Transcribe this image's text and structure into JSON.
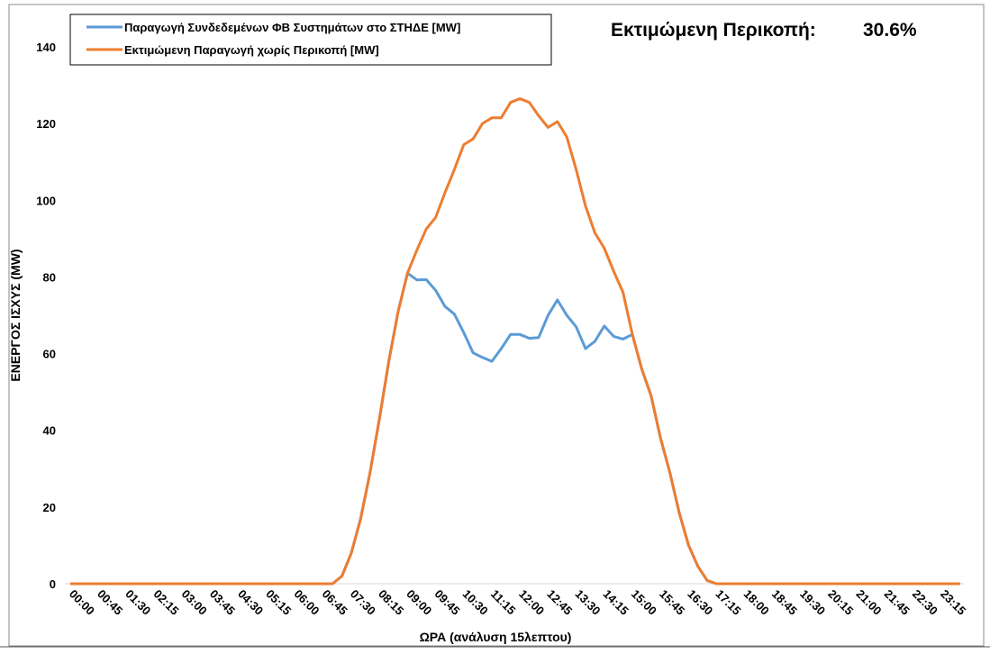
{
  "chart_data": {
    "type": "line",
    "annotation": "Εκτιμώμενη Περικοπή:",
    "annotation_value": "30.6%",
    "xlabel": "ΩΡΑ (ανάλυση 15λεπτου)",
    "ylabel": "ΕΝΕΡΓΟΣ ΙΣΧΥΣ (MW)",
    "categories": [
      "00:00",
      null,
      null,
      "00:45",
      null,
      null,
      "01:30",
      null,
      null,
      "02:15",
      null,
      null,
      "03:00",
      null,
      null,
      "03:45",
      null,
      null,
      "04:30",
      null,
      null,
      "05:15",
      null,
      null,
      "06:00",
      null,
      null,
      "06:45",
      null,
      null,
      "07:30",
      null,
      null,
      "08:15",
      null,
      null,
      "09:00",
      null,
      null,
      "09:45",
      null,
      null,
      "10:30",
      null,
      null,
      "11:15",
      null,
      null,
      "12:00",
      null,
      null,
      "12:45",
      null,
      null,
      "13:30",
      null,
      null,
      "14:15",
      null,
      null,
      "15:00",
      null,
      null,
      "15:45",
      null,
      null,
      "16:30",
      null,
      null,
      "17:15",
      null,
      null,
      "18:00",
      null,
      null,
      "18:45",
      null,
      null,
      "19:30",
      null,
      null,
      "20:15",
      null,
      null,
      "21:00",
      null,
      null,
      "21:45",
      null,
      null,
      "22:30",
      null,
      null,
      "23:15",
      null,
      null
    ],
    "series": [
      {
        "name": "Παραγωγή Συνδεδεμένων ΦΒ Συστημάτων στο ΣΤΗΔΕ [MW]",
        "color": "#5b9bd5",
        "values": [
          0,
          0,
          0,
          0,
          0,
          0,
          0,
          0,
          0,
          0,
          0,
          0,
          0,
          0,
          0,
          0,
          0,
          0,
          0,
          0,
          0,
          0,
          0,
          0,
          0,
          0,
          0,
          0,
          0,
          2,
          8,
          17,
          29,
          43,
          58,
          71,
          81,
          79.2,
          79.3,
          76.5,
          72.3,
          70.3,
          65.5,
          60.2,
          59,
          58,
          61.3,
          65,
          65,
          64,
          64.2,
          70,
          74,
          70,
          67,
          61.3,
          63.2,
          67.2,
          64.5,
          63.8,
          65,
          56,
          49,
          38,
          29,
          18.5,
          10,
          4.5,
          0.8,
          0,
          0,
          0,
          0,
          0,
          0,
          0,
          0,
          0,
          0,
          0,
          0,
          0,
          0,
          0,
          0,
          0,
          0,
          0,
          0,
          0,
          0,
          0,
          0,
          0,
          0,
          0
        ]
      },
      {
        "name": "Εκτιμώμενη Παραγωγή χωρίς Περικοπή [MW]",
        "color": "#ed7d31",
        "values": [
          0,
          0,
          0,
          0,
          0,
          0,
          0,
          0,
          0,
          0,
          0,
          0,
          0,
          0,
          0,
          0,
          0,
          0,
          0,
          0,
          0,
          0,
          0,
          0,
          0,
          0,
          0,
          0,
          0,
          2,
          8,
          17,
          29,
          43,
          58,
          71,
          81,
          87,
          92.5,
          95.5,
          102,
          108,
          114.5,
          116,
          120,
          121.5,
          121.5,
          125.5,
          126.5,
          125.5,
          122,
          119,
          120.5,
          116.5,
          108,
          98.5,
          91.5,
          87.5,
          81.5,
          76,
          65,
          56,
          49,
          38,
          29,
          18.5,
          10,
          4.5,
          0.8,
          0,
          0,
          0,
          0,
          0,
          0,
          0,
          0,
          0,
          0,
          0,
          0,
          0,
          0,
          0,
          0,
          0,
          0,
          0,
          0,
          0,
          0,
          0,
          0,
          0,
          0,
          0
        ]
      }
    ],
    "ylim": [
      0,
      140
    ],
    "yticks": [
      0,
      20,
      40,
      60,
      80,
      100,
      120,
      140
    ],
    "grid": false
  }
}
